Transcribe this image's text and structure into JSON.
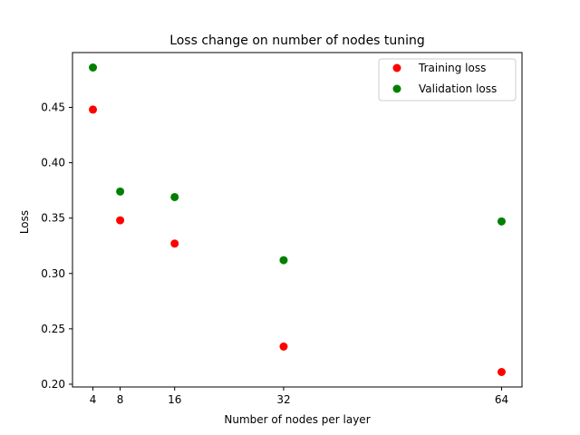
{
  "chart_data": {
    "type": "scatter",
    "title": "Loss change on number of nodes tuning",
    "xlabel": "Number of nodes per layer",
    "ylabel": "Loss",
    "x": [
      4,
      8,
      16,
      32,
      64
    ],
    "xticks": [
      4,
      8,
      16,
      32,
      64
    ],
    "yticks": [
      0.2,
      0.25,
      0.3,
      0.35,
      0.4,
      0.45
    ],
    "xlim": [
      1,
      67
    ],
    "ylim": [
      0.1975,
      0.4995
    ],
    "grid": false,
    "legend_position": "top-right",
    "series": [
      {
        "name": "Training loss",
        "color": "#ff0000",
        "values": [
          0.448,
          0.348,
          0.327,
          0.234,
          0.211
        ]
      },
      {
        "name": "Validation loss",
        "color": "#008000",
        "values": [
          0.486,
          0.374,
          0.369,
          0.312,
          0.347
        ]
      }
    ]
  }
}
